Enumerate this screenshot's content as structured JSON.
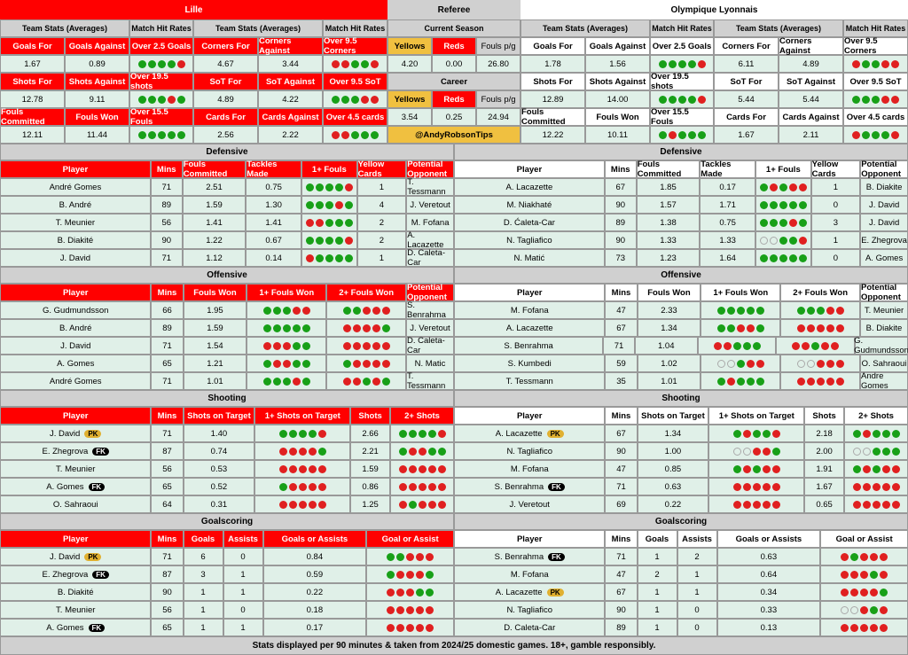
{
  "colors": {
    "red": "#ff0000",
    "mint": "#e0f0e8",
    "gray": "#d0d0d0",
    "yellow": "#f0c040",
    "white": "#ffffff",
    "dot_green": "#18a018",
    "dot_red": "#e02020"
  },
  "header": {
    "teamA": "Lille",
    "referee": "Referee",
    "teamB": "Olympique Lyonnais"
  },
  "statsHeaders": [
    "Team Stats (Averages)",
    "Match Hit Rates",
    "Team Stats (Averages)",
    "Match Hit Rates",
    "Current Season",
    "Team Stats (Averages)",
    "Match Hit Rates",
    "Team Stats (Averages)",
    "Match Hit Rates"
  ],
  "row1": {
    "labels": [
      "Goals For",
      "Goals Against",
      "Over 2.5 Goals",
      "Corners For",
      "Corners Against",
      "Over 9.5 Corners"
    ],
    "refLabels": [
      "Yellows",
      "Reds",
      "Fouls p/g"
    ],
    "bLabels": [
      "Goals For",
      "Goals Against",
      "Over 2.5 Goals",
      "Corners For",
      "Corners Against",
      "Over 9.5 Corners"
    ]
  },
  "row1v": {
    "a": [
      "1.67",
      "0.89"
    ],
    "aDots": [
      "ggggr"
    ],
    "a2": [
      "4.67",
      "3.44"
    ],
    "a2Dots": [
      "rrggr"
    ],
    "ref": [
      "4.20",
      "0.00",
      "26.80"
    ],
    "b": [
      "1.78",
      "1.56"
    ],
    "bDots": [
      "ggggr"
    ],
    "b2": [
      "6.11",
      "4.89"
    ],
    "b2Dots": [
      "rggrr"
    ]
  },
  "row2": {
    "labels": [
      "Shots For",
      "Shots Against",
      "Over 19.5 shots",
      "SoT For",
      "SoT Against",
      "Over 9.5 SoT"
    ],
    "mid": "Career",
    "bLabels": [
      "Shots For",
      "Shots Against",
      "Over 19.5 shots",
      "SoT For",
      "SoT Against",
      "Over 9.5 SoT"
    ]
  },
  "row2v": {
    "a": [
      "12.78",
      "9.11"
    ],
    "aDots": [
      "gggrg"
    ],
    "a2": [
      "4.89",
      "4.22"
    ],
    "a2Dots": [
      "gggrr"
    ],
    "ref": [
      "3.54",
      "0.25",
      "24.94"
    ],
    "b": [
      "12.89",
      "14.00"
    ],
    "bDots": [
      "ggggr"
    ],
    "b2": [
      "5.44",
      "5.44"
    ],
    "b2Dots": [
      "gggrr"
    ]
  },
  "row3": {
    "labels": [
      "Fouls Committed",
      "Fouls Won",
      "Over 15.5 Fouls",
      "Cards For",
      "Cards Against",
      "Over 4.5 cards"
    ],
    "bLabels": [
      "Fouls Committed",
      "Fouls Won",
      "Over 15.5 Fouls",
      "Cards For",
      "Cards Against",
      "Over 4.5 cards"
    ]
  },
  "row3v": {
    "a": [
      "12.11",
      "11.44"
    ],
    "aDots": [
      "ggggg"
    ],
    "a2": [
      "2.56",
      "2.22"
    ],
    "a2Dots": [
      "rrggg"
    ],
    "twitter": "@AndyRobsonTips",
    "b": [
      "12.22",
      "10.11"
    ],
    "bDots": [
      "grggg"
    ],
    "b2": [
      "1.67",
      "2.11"
    ],
    "b2Dots": [
      "rgggr"
    ]
  },
  "refLabels2": [
    "Yellows",
    "Reds",
    "Fouls p/g"
  ],
  "sections": {
    "defensive": {
      "title": "Defensive",
      "headers": [
        "Player",
        "Mins",
        "Fouls Committed",
        "Tackles Made",
        "1+ Fouls",
        "Yellow Cards",
        "Potential Opponent"
      ],
      "a": [
        {
          "p": "André Gomes",
          "m": "71",
          "fc": "2.51",
          "tm": "0.75",
          "f": "ggggr",
          "yc": "1",
          "op": "T. Tessmann"
        },
        {
          "p": "B. André",
          "m": "89",
          "fc": "1.59",
          "tm": "1.30",
          "f": "gggrg",
          "yc": "4",
          "op": "J. Veretout"
        },
        {
          "p": "T. Meunier",
          "m": "56",
          "fc": "1.41",
          "tm": "1.41",
          "f": "rrggg",
          "yc": "2",
          "op": "M. Fofana"
        },
        {
          "p": "B. Diakité",
          "m": "90",
          "fc": "1.22",
          "tm": "0.67",
          "f": "ggggr",
          "yc": "2",
          "op": "A. Lacazette"
        },
        {
          "p": "J. David",
          "m": "71",
          "fc": "1.12",
          "tm": "0.14",
          "f": "rgggg",
          "yc": "1",
          "op": "D. Caleta-Car"
        }
      ],
      "b": [
        {
          "p": "A. Lacazette",
          "m": "67",
          "fc": "1.85",
          "tm": "0.17",
          "f": "grgrr",
          "yc": "1",
          "op": "B. Diakite"
        },
        {
          "p": "M. Niakhaté",
          "m": "90",
          "fc": "1.57",
          "tm": "1.71",
          "f": "ggggg",
          "yc": "0",
          "op": "J. David"
        },
        {
          "p": "D. Ćaleta-Car",
          "m": "89",
          "fc": "1.38",
          "tm": "0.75",
          "f": "gggrg",
          "yc": "3",
          "op": "J. David"
        },
        {
          "p": "N. Tagliafico",
          "m": "90",
          "fc": "1.33",
          "tm": "1.33",
          "f": "eeggr",
          "yc": "1",
          "op": "E. Zhegrova"
        },
        {
          "p": "N. Matić",
          "m": "73",
          "fc": "1.23",
          "tm": "1.64",
          "f": "ggggg",
          "yc": "0",
          "op": "A. Gomes"
        }
      ]
    },
    "offensive": {
      "title": "Offensive",
      "headers": [
        "Player",
        "Mins",
        "Fouls Won",
        "1+ Fouls Won",
        "2+ Fouls Won",
        "Potential Opponent"
      ],
      "a": [
        {
          "p": "G. Gudmundsson",
          "m": "66",
          "fw": "1.95",
          "f1": "gggrr",
          "f2": "ggrrr",
          "op": "S. Benrahma"
        },
        {
          "p": "B. André",
          "m": "89",
          "fw": "1.59",
          "f1": "ggggg",
          "f2": "rrrrg",
          "op": "J. Veretout"
        },
        {
          "p": "J. David",
          "m": "71",
          "fw": "1.54",
          "f1": "rrrgg",
          "f2": "rrrrr",
          "op": "D. Caleta-Car"
        },
        {
          "p": "A. Gomes",
          "m": "65",
          "fw": "1.21",
          "f1": "grrgg",
          "f2": "grrrr",
          "op": "N. Matic"
        },
        {
          "p": "André Gomes",
          "m": "71",
          "fw": "1.01",
          "f1": "gggrg",
          "f2": "rrgrg",
          "op": "T. Tessmann"
        }
      ],
      "b": [
        {
          "p": "M. Fofana",
          "m": "47",
          "fw": "2.33",
          "f1": "ggggg",
          "f2": "gggrr",
          "op": "T. Meunier"
        },
        {
          "p": "A. Lacazette",
          "m": "67",
          "fw": "1.34",
          "f1": "ggrrg",
          "f2": "rrrrr",
          "op": "B. Diakite"
        },
        {
          "p": "S. Benrahma",
          "m": "71",
          "fw": "1.04",
          "f1": "rrggg",
          "f2": "rrgrr",
          "op": "G. Gudmundsson"
        },
        {
          "p": "S. Kumbedi",
          "m": "59",
          "fw": "1.02",
          "f1": "eegrr",
          "f2": "eerrr",
          "op": "O. Sahraoui"
        },
        {
          "p": "T. Tessmann",
          "m": "35",
          "fw": "1.01",
          "f1": "grggg",
          "f2": "rrrrr",
          "op": "Andre Gomes"
        }
      ]
    },
    "shooting": {
      "title": "Shooting",
      "headers": [
        "Player",
        "Mins",
        "Shots on Target",
        "1+ Shots on Target",
        "Shots",
        "2+ Shots"
      ],
      "a": [
        {
          "p": "J. David",
          "badge": "PK",
          "m": "71",
          "sot": "1.40",
          "s1": "ggggr",
          "sh": "2.66",
          "s2": "ggggr"
        },
        {
          "p": "E. Zhegrova",
          "badge": "FK",
          "m": "87",
          "sot": "0.74",
          "s1": "rrrrg",
          "sh": "2.21",
          "s2": "grrgg"
        },
        {
          "p": "T. Meunier",
          "m": "56",
          "sot": "0.53",
          "s1": "rrrrr",
          "sh": "1.59",
          "s2": "rrrrr"
        },
        {
          "p": "A. Gomes",
          "badge": "FK",
          "m": "65",
          "sot": "0.52",
          "s1": "grrrr",
          "sh": "0.86",
          "s2": "rrrrr"
        },
        {
          "p": "O. Sahraoui",
          "m": "64",
          "sot": "0.31",
          "s1": "rrrrr",
          "sh": "1.25",
          "s2": "rgrrr"
        }
      ],
      "b": [
        {
          "p": "A. Lacazette",
          "badge": "PK",
          "m": "67",
          "sot": "1.34",
          "s1": "grggr",
          "sh": "2.18",
          "s2": "grggg"
        },
        {
          "p": "N. Tagliafico",
          "m": "90",
          "sot": "1.00",
          "s1": "eerrg",
          "sh": "2.00",
          "s2": "eeggg"
        },
        {
          "p": "M. Fofana",
          "m": "47",
          "sot": "0.85",
          "s1": "grgrr",
          "sh": "1.91",
          "s2": "grgrr"
        },
        {
          "p": "S. Benrahma",
          "badge": "FK",
          "m": "71",
          "sot": "0.63",
          "s1": "rrrrr",
          "sh": "1.67",
          "s2": "rrrrr"
        },
        {
          "p": "J. Veretout",
          "m": "69",
          "sot": "0.22",
          "s1": "rrrrr",
          "sh": "0.65",
          "s2": "rrrrr"
        }
      ]
    },
    "goalscoring": {
      "title": "Goalscoring",
      "headers": [
        "Player",
        "Mins",
        "Goals",
        "Assists",
        "Goals or Assists",
        "Goal or Assist"
      ],
      "a": [
        {
          "p": "J. David",
          "badge": "PK",
          "m": "71",
          "g": "6",
          "a": "0",
          "goa": "0.84",
          "d": "ggrrr"
        },
        {
          "p": "E. Zhegrova",
          "badge": "FK",
          "m": "87",
          "g": "3",
          "a": "1",
          "goa": "0.59",
          "d": "grrrg"
        },
        {
          "p": "B. Diakité",
          "m": "90",
          "g": "1",
          "a": "1",
          "goa": "0.22",
          "d": "rrrgg"
        },
        {
          "p": "T. Meunier",
          "m": "56",
          "g": "1",
          "a": "0",
          "goa": "0.18",
          "d": "rrrrr"
        },
        {
          "p": "A. Gomes",
          "badge": "FK",
          "m": "65",
          "g": "1",
          "a": "1",
          "goa": "0.17",
          "d": "rrrrr"
        }
      ],
      "b": [
        {
          "p": "S. Benrahma",
          "badge": "FK",
          "m": "71",
          "g": "1",
          "a": "2",
          "goa": "0.63",
          "d": "rgrrr"
        },
        {
          "p": "M. Fofana",
          "m": "47",
          "g": "2",
          "a": "1",
          "goa": "0.64",
          "d": "rrrgr"
        },
        {
          "p": "A. Lacazette",
          "badge": "PK",
          "m": "67",
          "g": "1",
          "a": "1",
          "goa": "0.34",
          "d": "rrrrg"
        },
        {
          "p": "N. Tagliafico",
          "m": "90",
          "g": "1",
          "a": "0",
          "goa": "0.33",
          "d": "eergr"
        },
        {
          "p": "D. Caleta-Car",
          "m": "89",
          "g": "1",
          "a": "0",
          "goa": "0.13",
          "d": "rrrrr"
        }
      ]
    }
  },
  "footer": "Stats displayed per 90 minutes & taken from 2024/25 domestic games. 18+, gamble responsibly."
}
